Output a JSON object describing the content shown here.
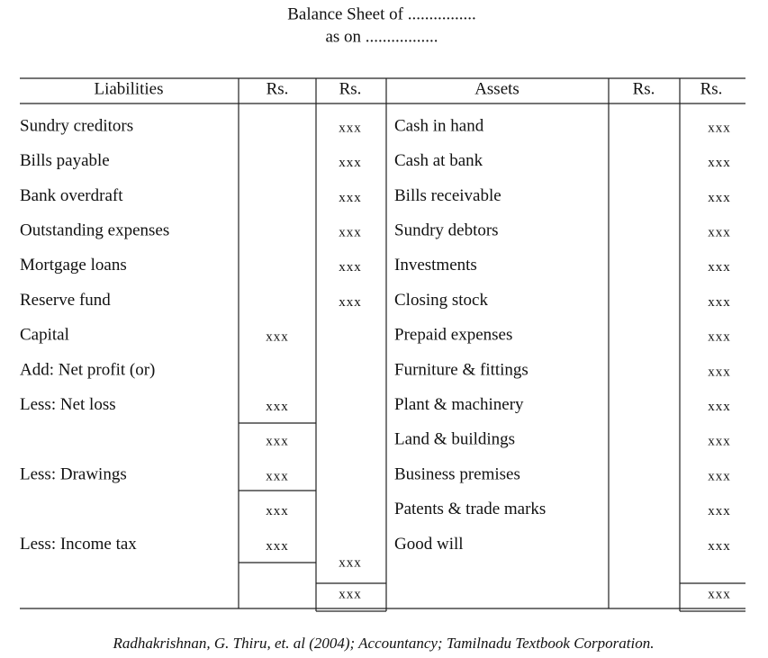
{
  "header": {
    "title": "Balance Sheet of ................",
    "subtitle": "as on ................."
  },
  "table": {
    "headers": [
      "Liabilities",
      "Rs.",
      "Rs.",
      "Assets",
      "Rs.",
      "Rs."
    ],
    "rows": [
      [
        "Sundry creditors",
        null,
        "xxx",
        "Cash in hand",
        null,
        "xxx"
      ],
      [
        "Bills payable",
        null,
        "xxx",
        "Cash at bank",
        null,
        "xxx"
      ],
      [
        "Bank overdraft",
        null,
        "xxx",
        "Bills receivable",
        null,
        "xxx"
      ],
      [
        "Outstanding expenses",
        null,
        "xxx",
        "Sundry debtors",
        null,
        "xxx"
      ],
      [
        "Mortgage loans",
        null,
        "xxx",
        "Investments",
        null,
        "xxx"
      ],
      [
        "Reserve fund",
        null,
        "xxx",
        "Closing stock",
        null,
        "xxx"
      ],
      [
        "Capital",
        "xxx",
        null,
        "Prepaid expenses",
        null,
        "xxx"
      ],
      [
        "Add: Net profit (or)",
        null,
        null,
        "Furniture & fittings",
        null,
        "xxx"
      ],
      [
        "Less: Net loss",
        "xxx",
        null,
        "Plant & machinery",
        null,
        "xxx"
      ],
      [
        null,
        "xxx",
        null,
        "Land & buildings",
        null,
        "xxx"
      ],
      [
        "Less: Drawings",
        "xxx",
        null,
        "Business premises",
        null,
        "xxx"
      ],
      [
        null,
        "xxx",
        null,
        "Patents & trade marks",
        null,
        "xxx"
      ],
      [
        "Less: Income tax",
        "xxx",
        null,
        "Good will",
        null,
        "xxx"
      ],
      [
        null,
        null,
        "xxx",
        null,
        null,
        null
      ],
      [
        null,
        null,
        "xxx",
        null,
        null,
        "xxx"
      ]
    ]
  },
  "footer": {
    "citation": "Radhakrishnan, G. Thiru, et. al (2004); Accountancy; Tamilnadu Textbook Corporation."
  }
}
